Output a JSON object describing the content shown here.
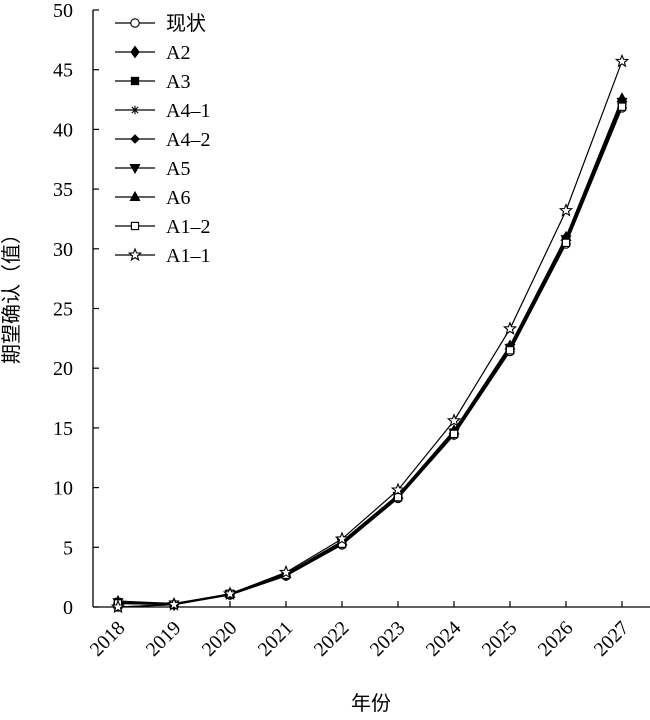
{
  "chart_data": {
    "type": "line",
    "x": [
      "2018",
      "2019",
      "2020",
      "2021",
      "2022",
      "2023",
      "2024",
      "2025",
      "2026",
      "2027"
    ],
    "xlabel": "年份",
    "ylabel": "期望确认（值）",
    "ylim": [
      0,
      50
    ],
    "yticks": [
      0,
      5,
      10,
      15,
      20,
      25,
      30,
      35,
      40,
      45,
      50
    ],
    "grid": false,
    "legend_position": "top-left",
    "series": [
      {
        "name": "现状",
        "marker": "circle-open",
        "values": [
          0.0,
          0.2,
          1.0,
          2.6,
          5.2,
          9.1,
          14.4,
          21.4,
          30.4,
          41.8
        ]
      },
      {
        "name": "A2",
        "marker": "diamond-filled",
        "values": [
          0.4,
          0.2,
          1.1,
          2.7,
          5.4,
          9.3,
          14.6,
          21.7,
          30.8,
          42.2
        ]
      },
      {
        "name": "A3",
        "marker": "square-filled",
        "values": [
          0.3,
          0.2,
          1.1,
          2.7,
          5.3,
          9.2,
          14.5,
          21.5,
          30.6,
          42.0
        ]
      },
      {
        "name": "A4–1",
        "marker": "asterisk",
        "values": [
          0.5,
          0.2,
          1.1,
          2.8,
          5.4,
          9.3,
          14.7,
          21.8,
          30.9,
          42.4
        ]
      },
      {
        "name": "A4–2",
        "marker": "diamond-small",
        "values": [
          0.4,
          0.2,
          1.1,
          2.7,
          5.3,
          9.2,
          14.6,
          21.6,
          30.7,
          42.1
        ]
      },
      {
        "name": "A5",
        "marker": "triangle-down",
        "values": [
          0.4,
          0.2,
          1.1,
          2.7,
          5.4,
          9.3,
          14.6,
          21.7,
          30.8,
          42.3
        ]
      },
      {
        "name": "A6",
        "marker": "triangle-up",
        "values": [
          0.5,
          0.3,
          1.1,
          2.8,
          5.5,
          9.4,
          14.8,
          21.9,
          31.0,
          42.6
        ]
      },
      {
        "name": "A1–2",
        "marker": "square-open",
        "values": [
          0.3,
          0.2,
          1.1,
          2.7,
          5.3,
          9.2,
          14.5,
          21.5,
          30.5,
          41.9
        ]
      },
      {
        "name": "A1–1",
        "marker": "star-open",
        "values": [
          0.0,
          0.2,
          1.1,
          2.9,
          5.7,
          9.8,
          15.6,
          23.3,
          33.2,
          45.7
        ]
      }
    ]
  }
}
